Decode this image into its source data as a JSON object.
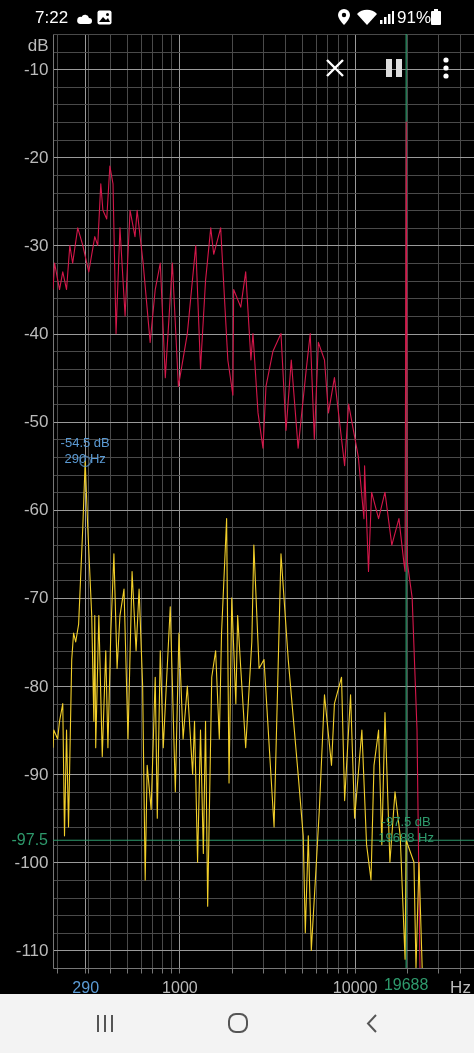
{
  "chart_data": {
    "type": "line",
    "xlabel": "Hz",
    "ylabel": "dB",
    "log": "x",
    "grid": true,
    "xlim": [
      190,
      48000
    ],
    "ylim": [
      -112,
      -6
    ],
    "xticks": [
      {
        "value": 200,
        "label": null
      },
      290,
      {
        "value": 300,
        "label": null
      },
      {
        "value": 400,
        "label": null
      },
      {
        "value": 500,
        "label": null
      },
      {
        "value": 600,
        "label": null
      },
      {
        "value": 700,
        "label": null
      },
      {
        "value": 800,
        "label": null
      },
      {
        "value": 900,
        "label": null
      },
      1000,
      {
        "value": 2000,
        "label": null
      },
      {
        "value": 3000,
        "label": null
      },
      {
        "value": 4000,
        "label": null
      },
      {
        "value": 5000,
        "label": null
      },
      {
        "value": 6000,
        "label": null
      },
      {
        "value": 7000,
        "label": null
      },
      {
        "value": 8000,
        "label": null
      },
      {
        "value": 9000,
        "label": null
      },
      10000,
      {
        "value": 20000,
        "label": null
      },
      {
        "value": 30000,
        "label": null
      },
      {
        "value": 40000,
        "label": null
      }
    ],
    "yticks": [
      {
        "value": -112,
        "label": null
      },
      -110,
      {
        "value": -108,
        "label": null
      },
      {
        "value": -106,
        "label": null
      },
      {
        "value": -104,
        "label": null
      },
      {
        "value": -102,
        "label": null
      },
      -100,
      {
        "value": -98,
        "label": null
      },
      {
        "value": -96,
        "label": null
      },
      {
        "value": -94,
        "label": null
      },
      {
        "value": -92,
        "label": null
      },
      -90,
      {
        "value": -88,
        "label": null
      },
      {
        "value": -86,
        "label": null
      },
      {
        "value": -84,
        "label": null
      },
      {
        "value": -82,
        "label": null
      },
      -80,
      {
        "value": -78,
        "label": null
      },
      {
        "value": -76,
        "label": null
      },
      {
        "value": -74,
        "label": null
      },
      {
        "value": -72,
        "label": null
      },
      -70,
      {
        "value": -68,
        "label": null
      },
      {
        "value": -66,
        "label": null
      },
      {
        "value": -64,
        "label": null
      },
      {
        "value": -62,
        "label": null
      },
      -60,
      {
        "value": -58,
        "label": null
      },
      {
        "value": -56,
        "label": null
      },
      {
        "value": -54,
        "label": null
      },
      {
        "value": -52,
        "label": null
      },
      -50,
      {
        "value": -48,
        "label": null
      },
      {
        "value": -46,
        "label": null
      },
      {
        "value": -44,
        "label": null
      },
      {
        "value": -42,
        "label": null
      },
      -40,
      {
        "value": -38,
        "label": null
      },
      {
        "value": -36,
        "label": null
      },
      {
        "value": -34,
        "label": null
      },
      {
        "value": -32,
        "label": null
      },
      -30,
      {
        "value": -28,
        "label": null
      },
      {
        "value": -26,
        "label": null
      },
      {
        "value": -24,
        "label": null
      },
      {
        "value": -22,
        "label": null
      },
      -20,
      {
        "value": -18,
        "label": null
      },
      {
        "value": -16,
        "label": null
      },
      {
        "value": -14,
        "label": null
      },
      {
        "value": -12,
        "label": null
      },
      -10,
      {
        "value": -8,
        "label": null
      },
      {
        "value": -6,
        "label": null
      }
    ],
    "series": [
      {
        "color": "#d4174a",
        "x": [
          190,
          194,
          207,
          216,
          227,
          237,
          246,
          263,
          281,
          304,
          329,
          342,
          356,
          366,
          385,
          401,
          418,
          435,
          458,
          490,
          523,
          558,
          574,
          621,
          681,
          728,
          778,
          831,
          912,
          987,
          1110,
          1240,
          1320,
          1410,
          1510,
          1570,
          1720,
          1890,
          2020,
          2040,
          2240,
          2390,
          2560,
          2630,
          2810,
          3000,
          3120,
          3420,
          3800,
          4060,
          4350,
          4760,
          5300,
          5580,
          5890,
          6210,
          6730,
          7090,
          7670,
          8770,
          9240,
          10500,
          11300,
          11400,
          12000,
          12500,
          13700,
          14900,
          16300,
          17900,
          19100,
          19400,
          19700,
          20000,
          21300,
          22700,
          23600
        ],
        "values": [
          -35,
          -32,
          -35,
          -33,
          -35,
          -30,
          -32,
          -28,
          -30,
          -33,
          -29,
          -30,
          -23,
          -26,
          -27,
          -21,
          -23,
          -40,
          -28,
          -38,
          -26,
          -29,
          -26,
          -32,
          -41,
          -35,
          -32,
          -45,
          -32,
          -46,
          -40,
          -30,
          -44,
          -34,
          -28,
          -31,
          -28,
          -43,
          -47,
          -35,
          -37,
          -33,
          -43,
          -40,
          -49,
          -53,
          -46,
          -42,
          -40,
          -51,
          -43,
          -53,
          -44,
          -40,
          -52,
          -41,
          -43,
          -49,
          -45,
          -55,
          -48,
          -54,
          -61,
          -55,
          -67,
          -58,
          -61,
          -58,
          -64,
          -61,
          -66,
          -67,
          -16,
          -66,
          -70,
          -85,
          -112
        ]
      },
      {
        "color": "#f2cf2a",
        "x": [
          190,
          192,
          202,
          207,
          216,
          221,
          227,
          233,
          243,
          249,
          256,
          266,
          281,
          290,
          300,
          316,
          325,
          329,
          333,
          347,
          363,
          380,
          391,
          406,
          423,
          441,
          458,
          483,
          509,
          537,
          566,
          589,
          617,
          638,
          655,
          690,
          728,
          748,
          778,
          809,
          842,
          887,
          948,
          994,
          1050,
          1110,
          1190,
          1220,
          1270,
          1320,
          1370,
          1410,
          1450,
          1530,
          1610,
          1690,
          1740,
          1860,
          1920,
          1990,
          2100,
          2150,
          2240,
          2390,
          2590,
          2660,
          2850,
          3040,
          3470,
          3800,
          4180,
          4760,
          5090,
          5230,
          5440,
          5660,
          6050,
          6290,
          6730,
          7380,
          7670,
          8420,
          8770,
          9480,
          10000,
          11000,
          11700,
          12400,
          12900,
          13700,
          14300,
          14900,
          15900,
          17000,
          18200,
          19400,
          19688,
          21800,
          22400,
          23300,
          24300
        ],
        "values": [
          -87,
          -85,
          -86,
          -84,
          -82,
          -97,
          -85,
          -96,
          -77,
          -74,
          -75,
          -73,
          -62,
          -54.5,
          -62,
          -72,
          -84,
          -72,
          -87,
          -72,
          -88,
          -76,
          -87,
          -74,
          -65,
          -78,
          -72,
          -69,
          -86,
          -67,
          -76,
          -69,
          -80,
          -102,
          -89,
          -94,
          -79,
          -95,
          -76,
          -87,
          -80,
          -71,
          -92,
          -74,
          -86,
          -80,
          -90,
          -84,
          -100,
          -85,
          -99,
          -84,
          -105,
          -79,
          -76,
          -86,
          -74,
          -61,
          -91,
          -70,
          -82,
          -72,
          -78,
          -87,
          -75,
          -64,
          -78,
          -77,
          -96,
          -65,
          -77,
          -90,
          -97,
          -108,
          -97,
          -110,
          -100,
          -94,
          -81,
          -89,
          -82,
          -79,
          -93,
          -81,
          -95,
          -85,
          -98,
          -102,
          -89,
          -85,
          -98,
          -83,
          -100,
          -92,
          -97,
          -111,
          -97.5,
          -100,
          -112,
          -100,
          -112
        ]
      }
    ],
    "ref_lines": [
      {
        "axis": "x",
        "value": 19688,
        "label": "19688",
        "color": "#2e9a6c"
      },
      {
        "axis": "y",
        "value": -97.5,
        "label": "-97.5",
        "color": "#2e9a6c"
      }
    ],
    "annotations": [
      "7:22",
      "91%",
      {
        "text": "-54.5 dB\n290 Hz",
        "x": 290,
        "y": -54.5
      },
      {
        "text": "-97.5 dB\n19688 Hz",
        "x": 19688,
        "y": -97.5
      }
    ]
  }
}
